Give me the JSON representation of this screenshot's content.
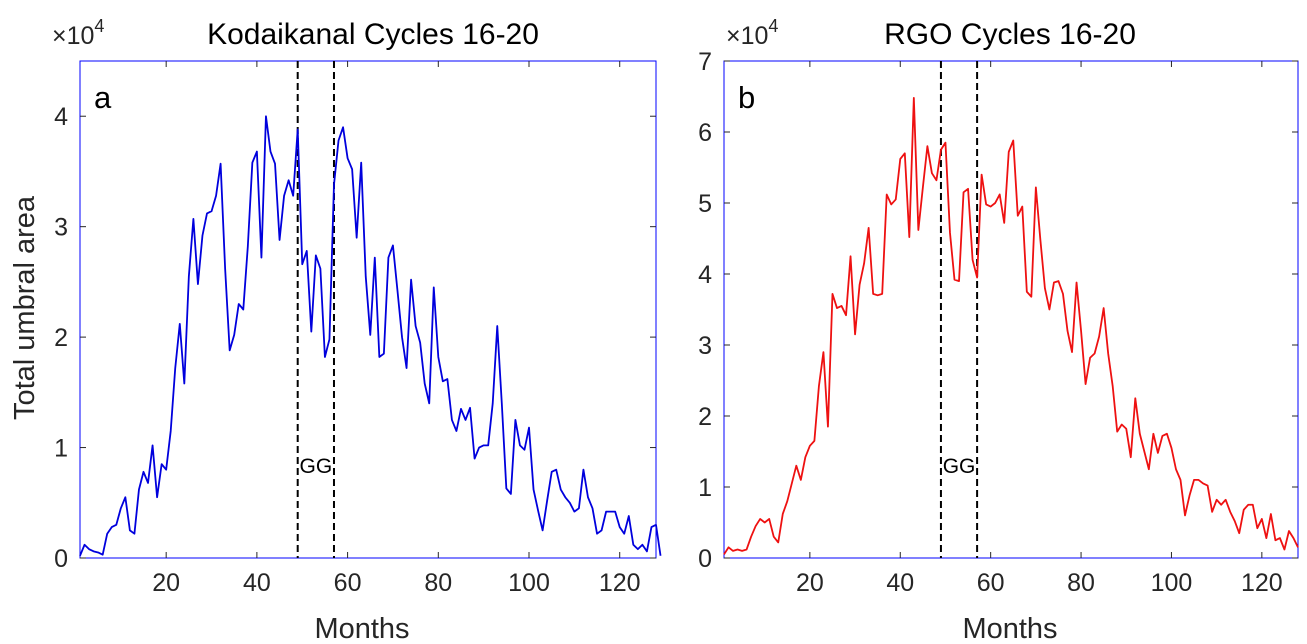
{
  "chart_data": [
    {
      "type": "line",
      "title": "Kodaikanal Cycles 16-20",
      "panel_label": "a",
      "xlabel": "Months",
      "ylabel": "Total umbral area",
      "multiplier": "×10",
      "multiplier_exp": "4",
      "xlim": [
        1,
        128
      ],
      "ylim": [
        0,
        4.5
      ],
      "xticks": [
        20,
        40,
        60,
        80,
        100,
        120
      ],
      "yticks": [
        0,
        1,
        2,
        3,
        4
      ],
      "color": "#0000dd",
      "vlines": [
        49,
        57
      ],
      "annotation": "GG",
      "values": [
        0.02,
        0.12,
        0.08,
        0.06,
        0.05,
        0.03,
        0.22,
        0.28,
        0.3,
        0.45,
        0.55,
        0.25,
        0.22,
        0.62,
        0.78,
        0.68,
        1.02,
        0.55,
        0.85,
        0.8,
        1.15,
        1.72,
        2.12,
        1.58,
        2.55,
        3.07,
        2.48,
        2.92,
        3.12,
        3.14,
        3.28,
        3.57,
        2.62,
        1.88,
        2.02,
        2.3,
        2.25,
        2.82,
        3.58,
        3.68,
        2.72,
        4.0,
        3.68,
        3.57,
        2.88,
        3.28,
        3.42,
        3.28,
        3.88,
        2.66,
        2.78,
        2.05,
        2.74,
        2.62,
        1.82,
        1.98,
        3.38,
        3.78,
        3.9,
        3.62,
        3.52,
        2.9,
        3.58,
        2.55,
        2.02,
        2.72,
        1.82,
        1.85,
        2.72,
        2.83,
        2.42,
        2.0,
        1.72,
        2.52,
        2.1,
        1.95,
        1.58,
        1.4,
        2.45,
        1.82,
        1.6,
        1.62,
        1.25,
        1.15,
        1.35,
        1.25,
        1.36,
        0.9,
        1.0,
        1.02,
        1.02,
        1.4,
        2.1,
        1.4,
        0.63,
        0.58,
        1.25,
        1.02,
        0.98,
        1.18,
        0.62,
        0.43,
        0.25,
        0.52,
        0.78,
        0.8,
        0.62,
        0.55,
        0.5,
        0.42,
        0.45,
        0.8,
        0.55,
        0.45,
        0.22,
        0.25,
        0.42,
        0.42,
        0.42,
        0.28,
        0.22,
        0.38,
        0.12,
        0.08,
        0.12,
        0.06,
        0.28,
        0.3,
        0.02
      ]
    },
    {
      "type": "line",
      "title": "RGO Cycles 16-20",
      "panel_label": "b",
      "xlabel": "Months",
      "ylabel": "",
      "multiplier": "×10",
      "multiplier_exp": "4",
      "xlim": [
        1,
        128
      ],
      "ylim": [
        0,
        7
      ],
      "xticks": [
        20,
        40,
        60,
        80,
        100,
        120
      ],
      "yticks": [
        0,
        1,
        2,
        3,
        4,
        5,
        6,
        7
      ],
      "color": "#ee1111",
      "vlines": [
        49,
        57
      ],
      "annotation": "GG",
      "values": [
        0.05,
        0.15,
        0.1,
        0.12,
        0.1,
        0.12,
        0.3,
        0.45,
        0.55,
        0.5,
        0.55,
        0.3,
        0.22,
        0.62,
        0.8,
        1.05,
        1.3,
        1.1,
        1.42,
        1.58,
        1.65,
        2.42,
        2.9,
        1.85,
        3.72,
        3.52,
        3.55,
        3.42,
        4.25,
        3.15,
        3.85,
        4.15,
        4.65,
        3.72,
        3.7,
        3.72,
        5.12,
        4.98,
        5.05,
        5.62,
        5.7,
        4.52,
        6.48,
        4.62,
        5.22,
        5.8,
        5.42,
        5.32,
        5.75,
        5.85,
        4.58,
        3.92,
        3.9,
        5.15,
        5.2,
        4.2,
        3.95,
        5.4,
        4.98,
        4.95,
        5.0,
        5.12,
        4.72,
        5.72,
        5.88,
        4.82,
        4.95,
        3.75,
        3.68,
        5.22,
        4.48,
        3.8,
        3.5,
        3.88,
        3.9,
        3.72,
        3.2,
        2.9,
        3.88,
        3.2,
        2.45,
        2.82,
        2.88,
        3.12,
        3.52,
        2.88,
        2.42,
        1.78,
        1.88,
        1.82,
        1.42,
        2.25,
        1.75,
        1.5,
        1.25,
        1.75,
        1.48,
        1.72,
        1.75,
        1.55,
        1.25,
        1.1,
        0.6,
        0.88,
        1.1,
        1.1,
        1.05,
        1.02,
        0.65,
        0.82,
        0.75,
        0.82,
        0.65,
        0.52,
        0.35,
        0.68,
        0.75,
        0.75,
        0.42,
        0.55,
        0.28,
        0.62,
        0.25,
        0.28,
        0.12,
        0.38,
        0.28,
        0.15
      ]
    }
  ]
}
